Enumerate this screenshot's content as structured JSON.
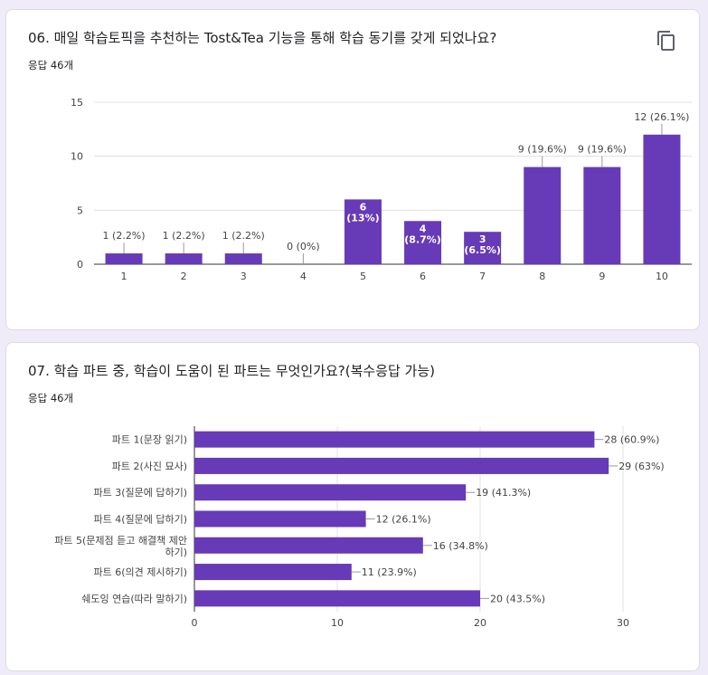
{
  "question1": {
    "title": "06. 매일 학습토픽을 추천하는 Tost&Tea 기능을 통해 학습 동기를 갖게 되었나요?",
    "response_count": "응답 46개"
  },
  "question2": {
    "title": "07. 학습 파트 중, 학습이 도움이 된 파트는 무엇인가요?(복수응답 가능)",
    "response_count": "응답 46개"
  },
  "colors": {
    "bar": "#673ab7",
    "grid": "#e0e0e0",
    "background": "#f0ebf8"
  },
  "chart_data": [
    {
      "type": "bar",
      "title": "",
      "categories": [
        "1",
        "2",
        "3",
        "4",
        "5",
        "6",
        "7",
        "8",
        "9",
        "10"
      ],
      "values": [
        1,
        1,
        1,
        0,
        6,
        4,
        3,
        9,
        9,
        12
      ],
      "labels": [
        "1 (2.2%)",
        "1 (2.2%)",
        "1 (2.2%)",
        "0 (0%)",
        "6|(13%)",
        "4|(8.7%)",
        "3|(6.5%)",
        "9 (19.6%)",
        "9 (19.6%)",
        "12 (26.1%)"
      ],
      "label_inside": [
        false,
        false,
        false,
        false,
        true,
        true,
        true,
        false,
        false,
        false
      ],
      "yticks": [
        0,
        5,
        10,
        15
      ],
      "ylim": [
        0,
        15
      ],
      "xlabel": "",
      "ylabel": ""
    },
    {
      "type": "bar",
      "orientation": "horizontal",
      "title": "",
      "categories": [
        "파트 1(문장 읽기)",
        "파트 2(사진 묘사)",
        "파트 3(질문에 답하기)",
        "파트 4(질문에 답하기)",
        "파트 5(문제점 듣고 해결책 제안|하기)",
        "파트 6(의견 제시하기)",
        "쉐도잉 연습(따라 말하기)"
      ],
      "values": [
        28,
        29,
        19,
        12,
        16,
        11,
        20
      ],
      "labels": [
        "28 (60.9%)",
        "29 (63%)",
        "19 (41.3%)",
        "12 (26.1%)",
        "16 (34.8%)",
        "11 (23.9%)",
        "20 (43.5%)"
      ],
      "xticks": [
        0,
        10,
        20,
        30
      ],
      "xlim": [
        0,
        30
      ],
      "xlabel": "",
      "ylabel": ""
    }
  ]
}
